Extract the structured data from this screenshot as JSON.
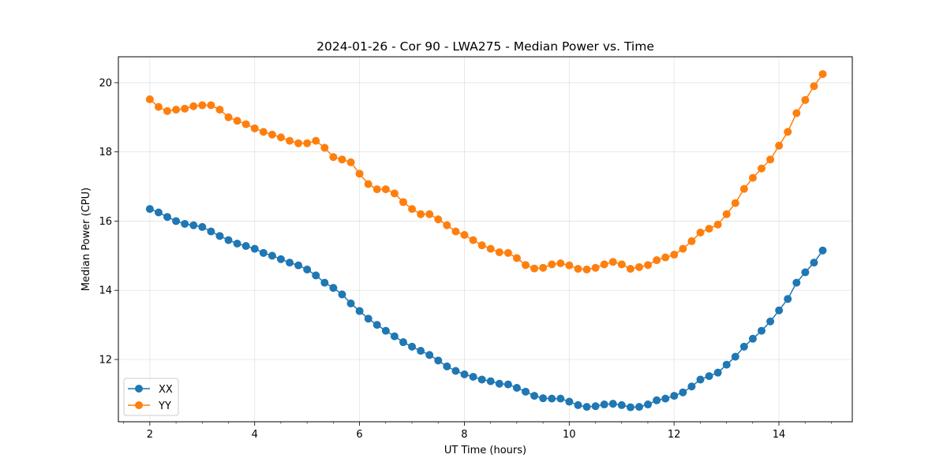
{
  "chart_data": {
    "type": "line",
    "title": "2024-01-26 - Cor 90 - LWA275 - Median Power vs. Time",
    "xlabel": "UT Time (hours)",
    "ylabel": "Median Power (CPU)",
    "xlim": [
      1.4,
      15.4
    ],
    "ylim": [
      10.2,
      20.75
    ],
    "xticks": [
      2,
      4,
      6,
      8,
      10,
      12,
      14
    ],
    "xtick_labels": [
      "2",
      "4",
      "6",
      "8",
      "10",
      "12",
      "14"
    ],
    "yticks": [
      12,
      14,
      16,
      18,
      20
    ],
    "ytick_labels": [
      "12",
      "14",
      "16",
      "18",
      "20"
    ],
    "grid": true,
    "legend": "lower-left",
    "x_start": 2.0,
    "x_step": 0.1667,
    "series": [
      {
        "name": "XX",
        "color": "#1f77b4",
        "values": [
          16.35,
          16.25,
          16.12,
          16.0,
          15.92,
          15.88,
          15.83,
          15.7,
          15.57,
          15.45,
          15.35,
          15.28,
          15.2,
          15.08,
          15.0,
          14.9,
          14.8,
          14.72,
          14.6,
          14.43,
          14.22,
          14.07,
          13.88,
          13.62,
          13.4,
          13.18,
          13.0,
          12.83,
          12.67,
          12.5,
          12.37,
          12.25,
          12.13,
          11.97,
          11.8,
          11.67,
          11.57,
          11.5,
          11.42,
          11.37,
          11.3,
          11.28,
          11.18,
          11.07,
          10.95,
          10.88,
          10.87,
          10.87,
          10.78,
          10.68,
          10.63,
          10.65,
          10.7,
          10.72,
          10.68,
          10.62,
          10.63,
          10.7,
          10.82,
          10.87,
          10.95,
          11.05,
          11.22,
          11.42,
          11.52,
          11.62,
          11.85,
          12.08,
          12.37,
          12.6,
          12.83,
          13.1,
          13.42,
          13.75,
          14.22,
          14.52,
          14.8,
          15.15
        ]
      },
      {
        "name": "YY",
        "color": "#ff7f0e",
        "values": [
          19.52,
          19.3,
          19.18,
          19.22,
          19.25,
          19.32,
          19.35,
          19.35,
          19.22,
          19.0,
          18.9,
          18.8,
          18.68,
          18.58,
          18.5,
          18.42,
          18.32,
          18.25,
          18.25,
          18.32,
          18.12,
          17.85,
          17.78,
          17.7,
          17.37,
          17.07,
          16.92,
          16.92,
          16.8,
          16.55,
          16.35,
          16.2,
          16.2,
          16.05,
          15.88,
          15.7,
          15.6,
          15.45,
          15.3,
          15.2,
          15.1,
          15.08,
          14.93,
          14.73,
          14.63,
          14.65,
          14.75,
          14.78,
          14.72,
          14.62,
          14.6,
          14.65,
          14.75,
          14.82,
          14.75,
          14.62,
          14.67,
          14.73,
          14.87,
          14.95,
          15.03,
          15.2,
          15.42,
          15.67,
          15.78,
          15.9,
          16.2,
          16.52,
          16.93,
          17.25,
          17.52,
          17.78,
          18.18,
          18.58,
          19.12,
          19.5,
          19.9,
          20.25
        ]
      }
    ]
  }
}
